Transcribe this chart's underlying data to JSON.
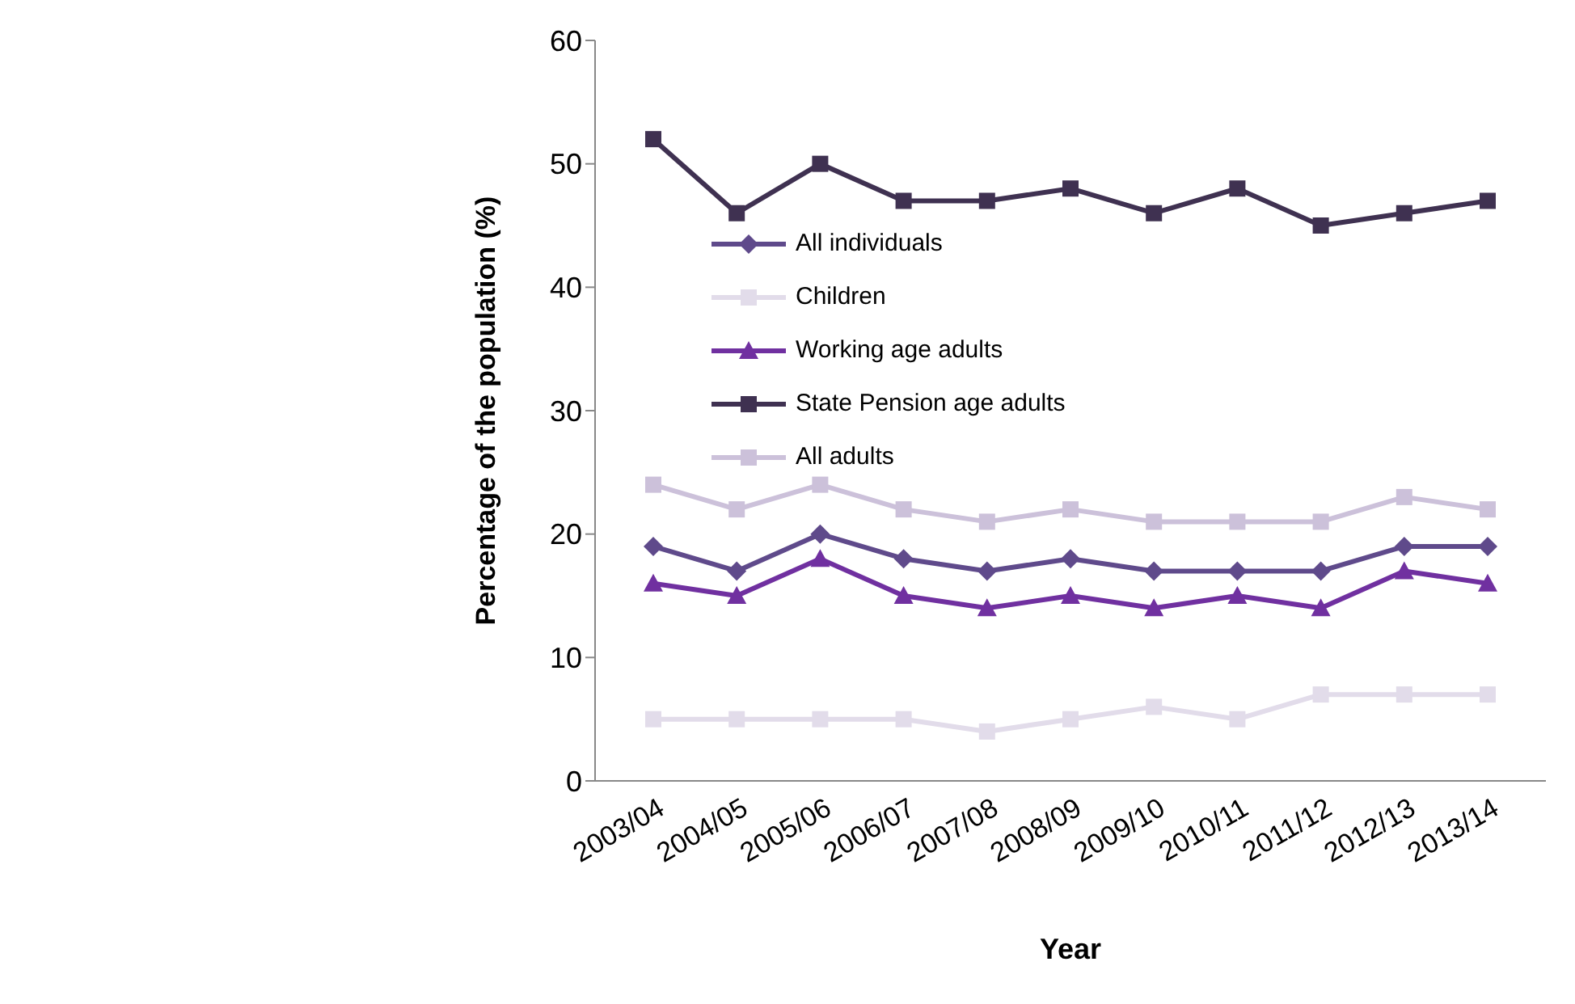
{
  "chart_data": {
    "type": "line",
    "xlabel": "Year",
    "ylabel": "Percentage of the population (%)",
    "categories": [
      "2003/04",
      "2004/05",
      "2005/06",
      "2006/07",
      "2007/08",
      "2008/09",
      "2009/10",
      "2010/11",
      "2011/12",
      "2012/13",
      "2013/14"
    ],
    "series": [
      {
        "name": "All individuals",
        "color": "#5f4a8b",
        "marker": "diamond",
        "values": [
          19,
          17,
          20,
          18,
          17,
          18,
          17,
          17,
          17,
          19,
          19
        ]
      },
      {
        "name": "Children",
        "color": "#e2dcea",
        "marker": "square",
        "values": [
          5,
          5,
          5,
          5,
          4,
          5,
          6,
          5,
          7,
          7,
          7
        ]
      },
      {
        "name": "Working age adults",
        "color": "#7030a0",
        "marker": "triangle",
        "values": [
          16,
          15,
          18,
          15,
          14,
          15,
          14,
          15,
          14,
          17,
          16
        ]
      },
      {
        "name": "State Pension age adults",
        "color": "#3f3151",
        "marker": "square",
        "values": [
          52,
          46,
          50,
          47,
          47,
          48,
          46,
          48,
          45,
          46,
          47
        ]
      },
      {
        "name": "All adults",
        "color": "#ccc1da",
        "marker": "square",
        "values": [
          24,
          22,
          24,
          22,
          21,
          22,
          21,
          21,
          21,
          23,
          22
        ]
      }
    ],
    "ylim": [
      0,
      60
    ],
    "yticks": [
      0,
      10,
      20,
      30,
      40,
      50,
      60
    ],
    "grid": false,
    "legend": "top"
  }
}
